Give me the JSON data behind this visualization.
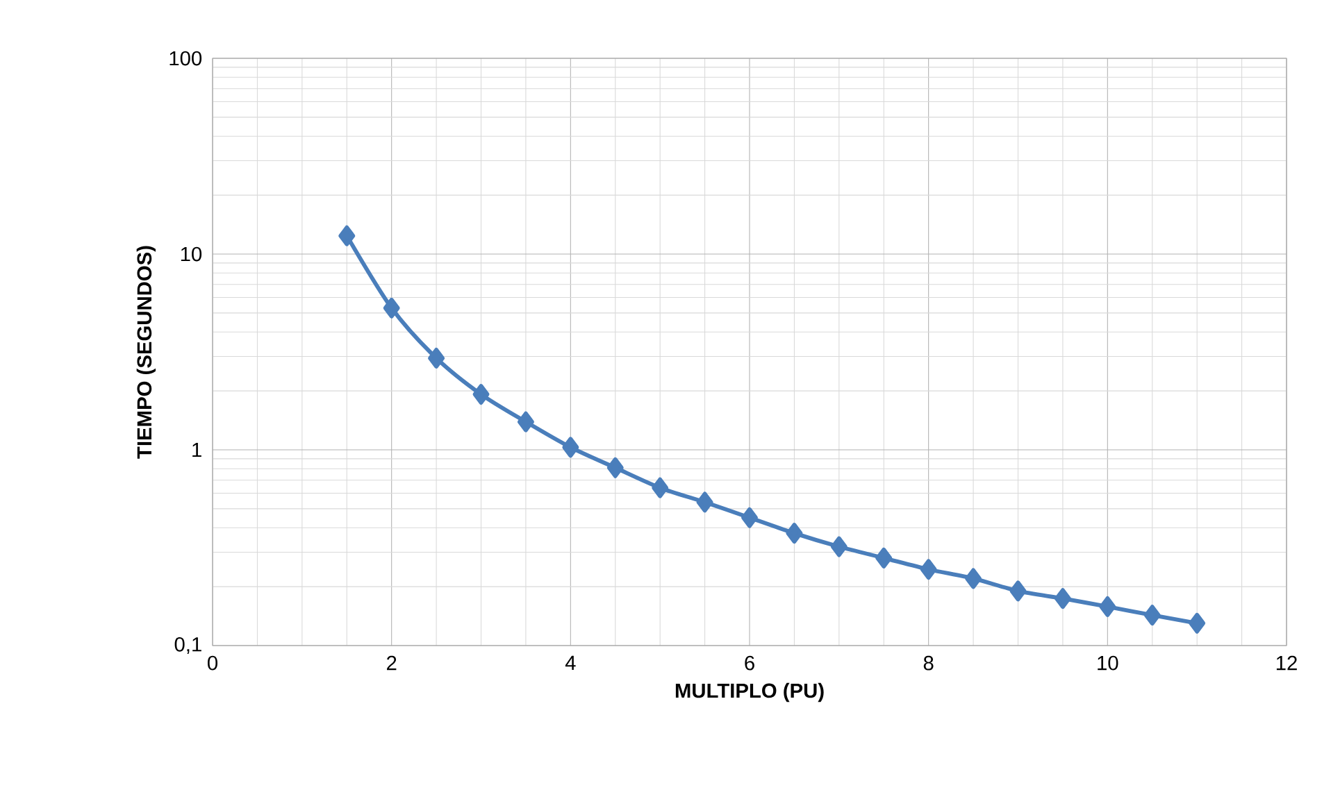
{
  "chart_data": {
    "type": "line",
    "xlabel": "MULTIPLO (PU)",
    "ylabel": "TIEMPO (SEGUNDOS)",
    "x": [
      1.5,
      2,
      2.5,
      3,
      3.5,
      4,
      4.5,
      5,
      5.5,
      6,
      6.5,
      7,
      7.5,
      8,
      8.5,
      9,
      9.5,
      10,
      10.5,
      11
    ],
    "series": [
      {
        "color": "#4a7ebb",
        "values": [
          12.4,
          5.3,
          2.94,
          1.92,
          1.39,
          1.03,
          0.81,
          0.64,
          0.54,
          0.45,
          0.375,
          0.32,
          0.28,
          0.245,
          0.22,
          0.19,
          0.174,
          0.158,
          0.143,
          0.13
        ]
      }
    ],
    "xlim": [
      0,
      12
    ],
    "xticks": [
      0,
      2,
      4,
      6,
      8,
      10,
      12
    ],
    "ylim": [
      0.1,
      100
    ],
    "yticks": [
      {
        "value": 0.1,
        "label": "0,1"
      },
      1,
      10,
      100
    ],
    "log": "y",
    "grid": true,
    "marker": "diamond",
    "line_style": "solid"
  }
}
